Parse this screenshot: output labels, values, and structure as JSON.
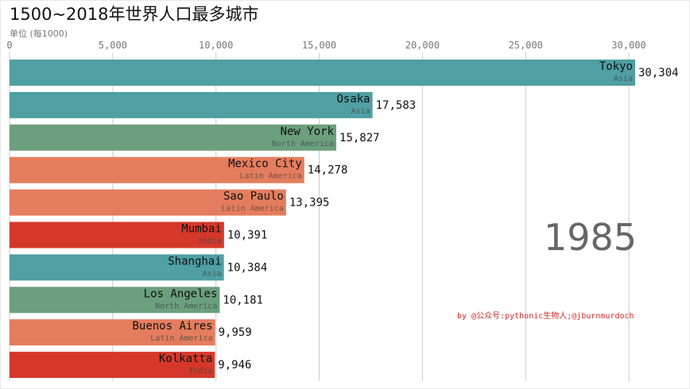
{
  "title": "1500~2018年世界人口最多城市",
  "unit_label": "单位 (每1000)",
  "year": "1985",
  "credit": "by @公众号:pythonic生物人;@jburnmurdoch",
  "colors": {
    "Asia": "#4f9fa3",
    "North America": "#6b9f7e",
    "Latin America": "#e47d5d",
    "India": "#d5382a"
  },
  "chart_data": {
    "type": "bar",
    "orientation": "horizontal",
    "title": "1500~2018年世界人口最多城市",
    "xlim": [
      0,
      31500
    ],
    "x_ticks": [
      0,
      5000,
      10000,
      15000,
      20000,
      25000,
      30000
    ],
    "x_tick_labels": [
      "0",
      "5,000",
      "10,000",
      "15,000",
      "20,000",
      "25,000",
      "30,000"
    ],
    "grid": true,
    "categories": [
      "Tokyo",
      "Osaka",
      "New York",
      "Mexico City",
      "Sao Paulo",
      "Mumbai",
      "Shanghai",
      "Los Angeles",
      "Buenos Aires",
      "Kolkatta"
    ],
    "regions": [
      "Asia",
      "Asia",
      "North America",
      "Latin America",
      "Latin America",
      "India",
      "Asia",
      "North America",
      "Latin America",
      "India"
    ],
    "values": [
      30304,
      17583,
      15827,
      14278,
      13395,
      10391,
      10384,
      10181,
      9959,
      9946
    ],
    "value_labels": [
      "30,304",
      "17,583",
      "15,827",
      "14,278",
      "13,395",
      "10,391",
      "10,384",
      "10,181",
      "9,959",
      "9,946"
    ]
  }
}
